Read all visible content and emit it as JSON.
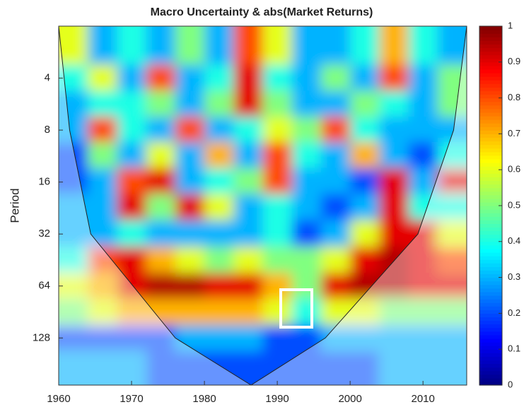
{
  "chart_data": {
    "type": "heatmap",
    "title": "Macro Uncertainty & abs(Market Returns)",
    "ylabel": "Period",
    "x": [
      1962,
      1966,
      1970,
      1974,
      1978,
      1982,
      1986,
      1990,
      1994,
      1998,
      2002,
      2006,
      2010,
      2014
    ],
    "periods": [
      2.8,
      4,
      5.6,
      8,
      11,
      16,
      22,
      32,
      45,
      64,
      90,
      128,
      181
    ],
    "z": [
      [
        0.6,
        0.3,
        0.4,
        0.3,
        0.5,
        0.3,
        0.8,
        0.6,
        0.3,
        0.3,
        0.4,
        0.7,
        0.4,
        0.3
      ],
      [
        0.4,
        0.6,
        0.3,
        0.8,
        0.3,
        0.4,
        0.9,
        0.4,
        0.3,
        0.5,
        0.3,
        0.8,
        0.3,
        0.5
      ],
      [
        0.3,
        0.4,
        0.4,
        0.5,
        0.3,
        0.5,
        0.9,
        0.5,
        0.3,
        0.3,
        0.5,
        0.4,
        0.3,
        0.5
      ],
      [
        0.3,
        0.8,
        0.4,
        0.3,
        0.8,
        0.3,
        0.4,
        0.6,
        0.5,
        0.8,
        0.4,
        0.3,
        0.3,
        0.3
      ],
      [
        0.2,
        0.5,
        0.3,
        0.6,
        0.3,
        0.7,
        0.3,
        0.8,
        0.4,
        0.3,
        0.7,
        0.3,
        0.2,
        0.4
      ],
      [
        0.2,
        0.3,
        0.8,
        0.9,
        0.3,
        0.4,
        0.5,
        0.8,
        0.3,
        0.3,
        0.2,
        0.9,
        0.3,
        0.9
      ],
      [
        0.3,
        0.3,
        0.9,
        0.5,
        0.9,
        0.6,
        0.3,
        0.4,
        0.3,
        0.2,
        0.3,
        0.9,
        0.4,
        0.4
      ],
      [
        0.3,
        0.3,
        0.4,
        0.3,
        0.3,
        0.3,
        0.3,
        0.4,
        0.2,
        0.3,
        0.6,
        0.9,
        0.9,
        0.6
      ],
      [
        0.4,
        0.8,
        0.9,
        0.7,
        0.6,
        0.5,
        0.6,
        0.5,
        0.5,
        0.6,
        0.9,
        0.95,
        0.9,
        0.8
      ],
      [
        0.6,
        0.7,
        0.9,
        0.95,
        0.95,
        0.9,
        0.9,
        0.7,
        0.5,
        0.9,
        0.95,
        0.95,
        0.9,
        0.9
      ],
      [
        0.5,
        0.6,
        0.7,
        0.7,
        0.7,
        0.7,
        0.7,
        0.6,
        0.4,
        0.6,
        0.6,
        0.5,
        0.5,
        0.5
      ],
      [
        0.2,
        0.2,
        0.2,
        0.2,
        0.3,
        0.3,
        0.3,
        0.2,
        0.2,
        0.3,
        0.3,
        0.3,
        0.3,
        0.3
      ],
      [
        0.3,
        0.3,
        0.3,
        0.2,
        0.2,
        0.2,
        0.2,
        0.2,
        0.2,
        0.2,
        0.2,
        0.3,
        0.3,
        0.3
      ]
    ],
    "xlim": [
      1960,
      2016
    ],
    "xticks": [
      1960,
      1970,
      1980,
      1990,
      2000,
      2010
    ],
    "ylim": [
      2,
      240
    ],
    "yscale": "log",
    "yreversed": true,
    "yticks": [
      4,
      8,
      16,
      32,
      64,
      128
    ],
    "cone_of_influence": {
      "x": [
        1960,
        1961.5,
        1964.4,
        1976,
        1986.4,
        1996.6,
        2009.3,
        2014.2,
        2016
      ],
      "period": [
        2,
        8,
        32,
        128,
        240,
        128,
        32,
        8,
        2
      ]
    },
    "colorbar": {
      "lim": [
        0,
        1
      ],
      "ticks": [
        0,
        0.1,
        0.2,
        0.3,
        0.4,
        0.5,
        0.6,
        0.7,
        0.8,
        0.9,
        1
      ]
    },
    "colormap": "jet"
  }
}
